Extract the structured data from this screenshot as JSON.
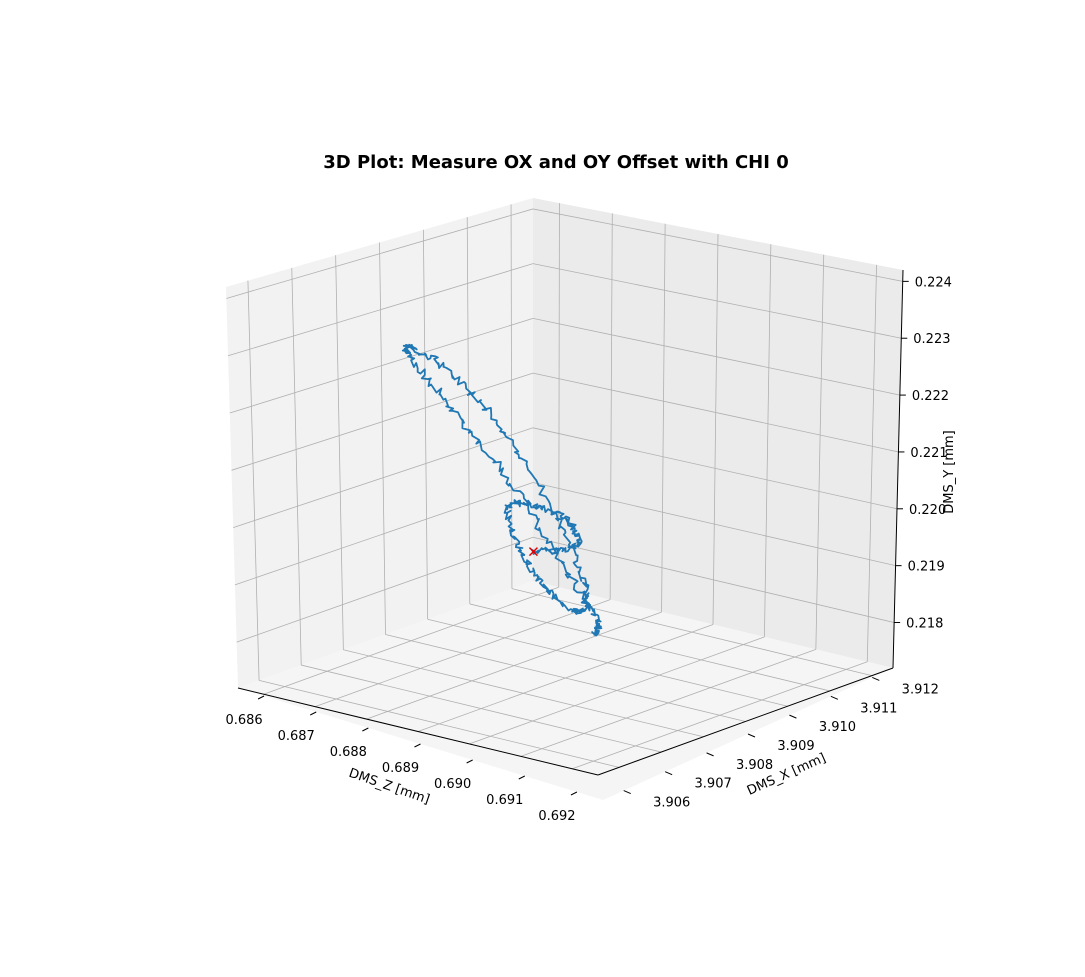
{
  "chart_data": {
    "type": "line3d",
    "title": "3D Plot: Measure OX and OY Offset with CHI 0",
    "axes": {
      "z": {
        "label": "DMS_Z [mm]",
        "range": [
          0.6855,
          0.6925
        ],
        "ticks": [
          "0.686",
          "0.687",
          "0.688",
          "0.689",
          "0.690",
          "0.691",
          "0.692"
        ],
        "tick_values": [
          0.686,
          0.687,
          0.688,
          0.689,
          0.69,
          0.691,
          0.692
        ]
      },
      "x": {
        "label": "DMS_X [mm]",
        "range": [
          3.9055,
          3.9125
        ],
        "ticks": [
          "3.906",
          "3.907",
          "3.908",
          "3.909",
          "3.910",
          "3.911",
          "3.912"
        ],
        "tick_values": [
          3.906,
          3.907,
          3.908,
          3.909,
          3.91,
          3.911,
          3.912
        ]
      },
      "y": {
        "label": "DMS_Y [mm]",
        "range": [
          0.2172,
          0.2242
        ],
        "ticks": [
          "0.218",
          "0.219",
          "0.220",
          "0.221",
          "0.222",
          "0.223",
          "0.224"
        ],
        "tick_values": [
          0.218,
          0.219,
          0.22,
          0.221,
          0.222,
          0.223,
          0.224
        ]
      }
    },
    "series": [
      {
        "line_color": "#1f77b4",
        "description_points": "spiral path in data units [z, x, y]",
        "points": [
          [
            0.6895,
            3.9088,
            0.2195
          ],
          [
            0.6891,
            3.9093,
            0.2196
          ],
          [
            0.6889,
            3.909,
            0.2199
          ],
          [
            0.6892,
            3.9086,
            0.2202
          ],
          [
            0.6896,
            3.9084,
            0.2202
          ],
          [
            0.6898,
            3.9088,
            0.2196
          ],
          [
            0.6897,
            3.9092,
            0.219
          ],
          [
            0.6892,
            3.9094,
            0.2185
          ],
          [
            0.6886,
            3.9091,
            0.2186
          ],
          [
            0.6883,
            3.9083,
            0.2196
          ],
          [
            0.6885,
            3.9075,
            0.221
          ],
          [
            0.6892,
            3.907,
            0.2222
          ],
          [
            0.6902,
            3.9071,
            0.2229
          ],
          [
            0.6911,
            3.9078,
            0.2231
          ],
          [
            0.6915,
            3.9089,
            0.2225
          ],
          [
            0.6913,
            3.9099,
            0.2213
          ],
          [
            0.6906,
            3.9103,
            0.2198
          ],
          [
            0.6896,
            3.9101,
            0.2186
          ],
          [
            0.6888,
            3.9094,
            0.218
          ]
        ]
      }
    ],
    "marker": {
      "symbol": "x",
      "color": "#e00000",
      "point": [
        0.6895,
        3.9088,
        0.2195
      ]
    },
    "grid": true,
    "legend": "none"
  }
}
